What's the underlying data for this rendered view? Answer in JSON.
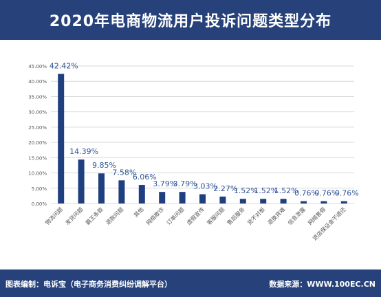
{
  "header": {
    "title": "2020年电商物流用户投诉问题类型分布"
  },
  "footer": {
    "left": "图表编制：电诉宝（电子商务消费纠纷调解平台）",
    "right": "数据来源：WWW.100EC.CN"
  },
  "chart_data": {
    "type": "bar",
    "title": "2020年电商物流用户投诉问题类型分布",
    "xlabel": "",
    "ylabel": "",
    "ylim": [
      0,
      45
    ],
    "y_ticks": [
      "0.00%",
      "5.00%",
      "10.00%",
      "15.00%",
      "20.00%",
      "25.00%",
      "30.00%",
      "35.00%",
      "40.00%",
      "45.00%"
    ],
    "grid": true,
    "categories": [
      "物流问题",
      "发货问题",
      "霸王条款",
      "退款问题",
      "其他",
      "网络欺诈",
      "订单问题",
      "虚假宣传",
      "客服问题",
      "售后服务",
      "货不对板",
      "退换货难",
      "信息泄露",
      "网络售假",
      "退店保证金不退还"
    ],
    "values": [
      42.42,
      14.39,
      9.85,
      7.58,
      6.06,
      3.79,
      3.79,
      3.03,
      2.27,
      1.52,
      1.52,
      1.52,
      0.76,
      0.76,
      0.76
    ],
    "data_labels": [
      "42.42%",
      "14.39%",
      "9.85%",
      "7.58%",
      "6.06%",
      "3.79%",
      "3.79%",
      "3.03%",
      "2.27%",
      "1.52%",
      "1.52%",
      "1.52%",
      "0.76%",
      "0.76%",
      "0.76%"
    ],
    "colors": {
      "bar": "#1f3f7f",
      "label": "#2f5597",
      "grid": "#d9d9d9"
    }
  }
}
